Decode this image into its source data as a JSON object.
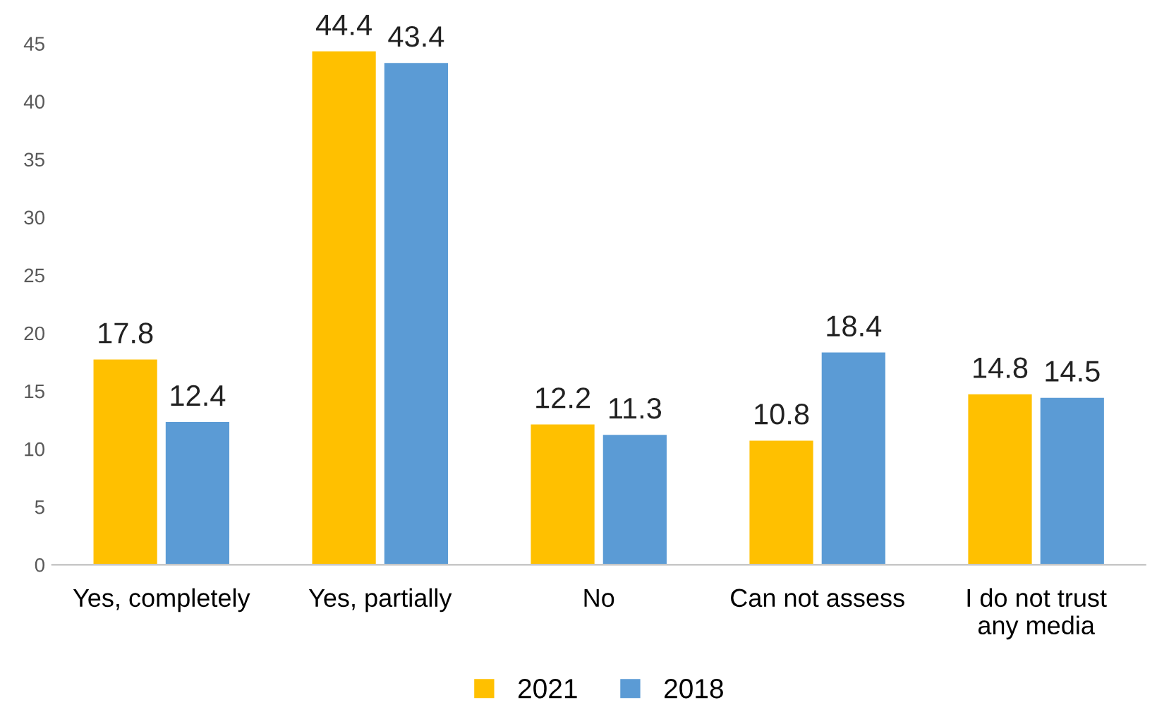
{
  "chart_data": {
    "type": "bar",
    "categories": [
      "Yes, completely",
      "Yes, partially",
      "No",
      "Can not assess",
      "I do not trust\nany media"
    ],
    "series": [
      {
        "name": "2021",
        "color": "#ffc000",
        "values": [
          17.8,
          44.4,
          12.2,
          10.8,
          14.8
        ]
      },
      {
        "name": "2018",
        "color": "#5b9bd5",
        "values": [
          12.4,
          43.4,
          11.3,
          18.4,
          14.5
        ]
      }
    ],
    "ylim": [
      0,
      45
    ],
    "yticks": [
      0,
      5,
      10,
      15,
      20,
      25,
      30,
      35,
      40,
      45
    ],
    "grid": false,
    "legend": "bottom",
    "data_labels": true
  }
}
